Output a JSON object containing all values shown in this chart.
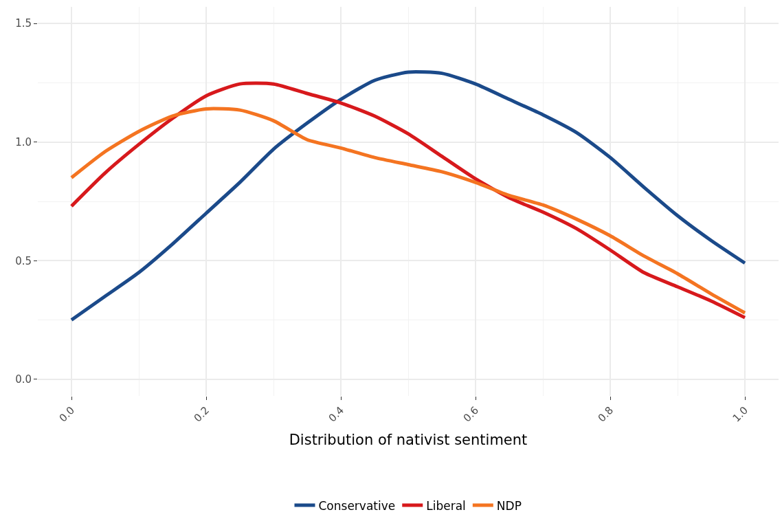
{
  "chart_data": {
    "type": "line",
    "xlabel": "Distribution of nativist sentiment",
    "x": [
      0,
      0.05,
      0.1,
      0.15,
      0.2,
      0.25,
      0.3,
      0.35,
      0.4,
      0.45,
      0.5,
      0.55,
      0.6,
      0.65,
      0.7,
      0.75,
      0.8,
      0.85,
      0.9,
      0.95,
      1.0
    ],
    "series": [
      {
        "name": "Conservative",
        "color": "#1b4a8a",
        "values": [
          0.25,
          0.35,
          0.45,
          0.57,
          0.7,
          0.83,
          0.97,
          1.08,
          1.18,
          1.26,
          1.295,
          1.29,
          1.245,
          1.18,
          1.115,
          1.04,
          0.935,
          0.81,
          0.69,
          0.585,
          0.49
        ]
      },
      {
        "name": "Liberal",
        "color": "#d7191c",
        "values": [
          0.73,
          0.87,
          0.99,
          1.1,
          1.195,
          1.245,
          1.245,
          1.205,
          1.165,
          1.11,
          1.035,
          0.94,
          0.845,
          0.765,
          0.705,
          0.635,
          0.545,
          0.45,
          0.39,
          0.33,
          0.26
        ]
      },
      {
        "name": "NDP",
        "color": "#f47421",
        "values": [
          0.85,
          0.96,
          1.045,
          1.11,
          1.14,
          1.135,
          1.09,
          1.01,
          0.975,
          0.935,
          0.905,
          0.875,
          0.83,
          0.775,
          0.735,
          0.675,
          0.605,
          0.52,
          0.445,
          0.36,
          0.28
        ]
      }
    ],
    "xlim": [
      -0.05,
      1.05
    ],
    "ylim": [
      -0.07,
      1.57
    ],
    "xticks": [
      {
        "value": 0,
        "label": "0.0"
      },
      {
        "value": 0.2,
        "label": "0.2"
      },
      {
        "value": 0.4,
        "label": "0.4"
      },
      {
        "value": 0.6,
        "label": "0.6"
      },
      {
        "value": 0.8,
        "label": "0.8"
      },
      {
        "value": 1.0,
        "label": "1.0"
      }
    ],
    "yticks": [
      {
        "value": 0,
        "label": "0.0"
      },
      {
        "value": 0.5,
        "label": "0.5"
      },
      {
        "value": 1.0,
        "label": "1.0"
      },
      {
        "value": 1.5,
        "label": "1.5"
      }
    ],
    "grid": true,
    "legend": "bottom",
    "line_style": "solid",
    "marker": "none"
  }
}
